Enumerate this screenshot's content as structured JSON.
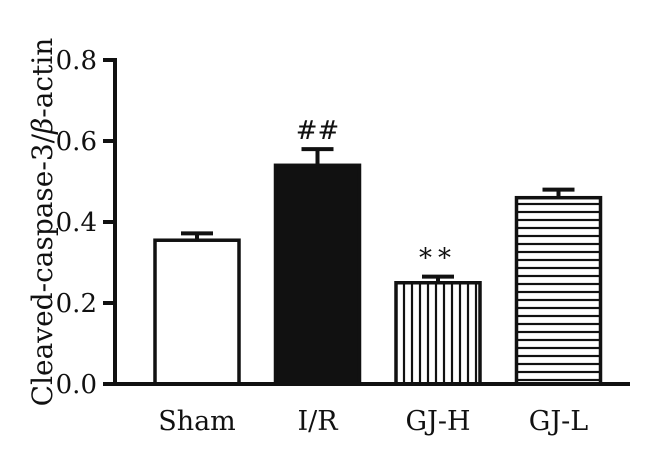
{
  "chart_data": {
    "type": "bar",
    "categories": [
      "Sham",
      "I/R",
      "GJ-H",
      "GJ-L"
    ],
    "values": [
      0.355,
      0.54,
      0.25,
      0.46
    ],
    "errors": [
      0.017,
      0.04,
      0.015,
      0.02
    ],
    "annotations": [
      "",
      "##",
      "**",
      ""
    ],
    "fills": [
      "white",
      "black",
      "vertical-stripes",
      "horizontal-stripes"
    ],
    "ylabel_prefix": "Cleaved-caspase-3/",
    "ylabel_greek": "β",
    "ylabel_suffix": "-actin",
    "ylim": [
      0,
      0.8
    ],
    "yticks": [
      "0.0",
      "0.2",
      "0.4",
      "0.6",
      "0.8"
    ],
    "ytick_values": [
      0,
      0.2,
      0.4,
      0.6,
      0.8
    ],
    "grid": false
  }
}
